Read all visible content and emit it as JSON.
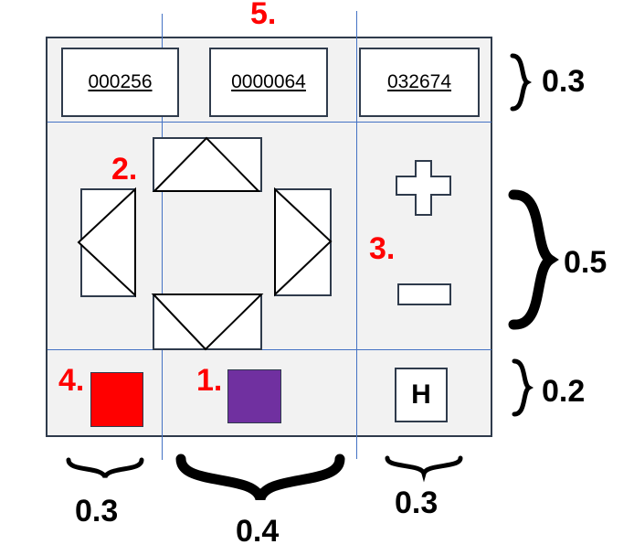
{
  "fields": [
    "000256",
    "0000064",
    "032674"
  ],
  "markers": {
    "n1": "1.",
    "n2": "2.",
    "n3": "3.",
    "n4": "4.",
    "n5": "5."
  },
  "ratios": {
    "row_top": "0.3",
    "row_mid": "0.5",
    "row_bottom": "0.2",
    "col_left": "0.3",
    "col_mid": "0.4",
    "col_right": "0.3"
  },
  "buttons": {
    "home_label": "H"
  },
  "colors": {
    "red_button": "#ff0000",
    "purple_button": "#7030a0",
    "guide_lines": "#4472c4",
    "marker_text": "#ff0000"
  },
  "icons": [
    "up-arrow-icon",
    "down-arrow-icon",
    "left-arrow-icon",
    "right-arrow-icon",
    "plus-icon",
    "minus-icon"
  ]
}
